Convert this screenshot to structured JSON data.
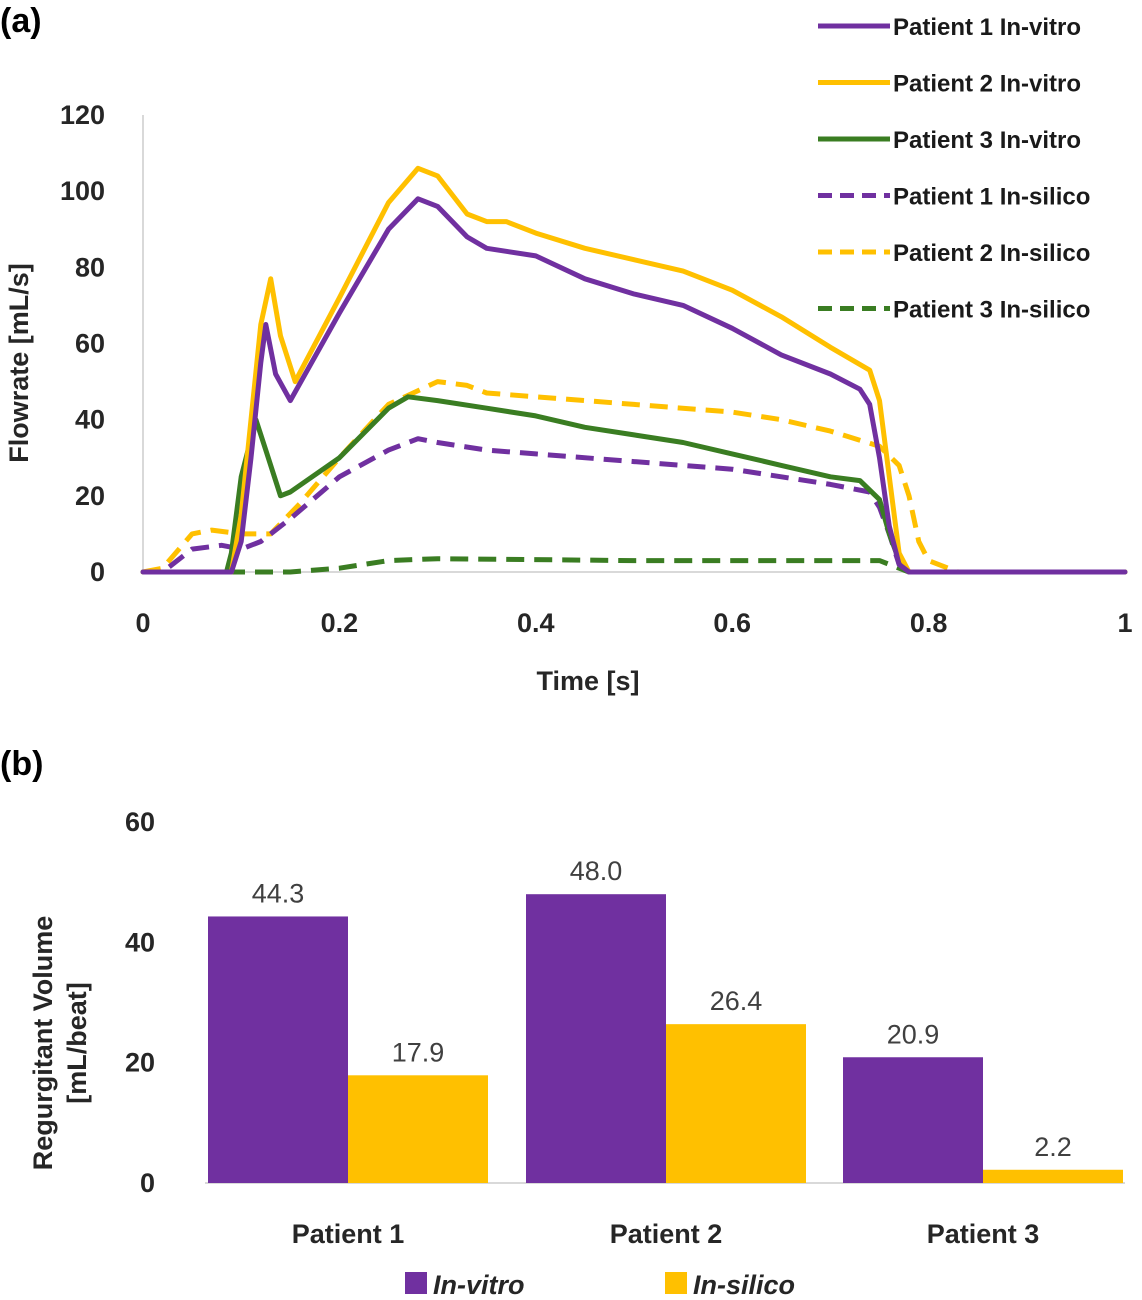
{
  "chart_data": [
    {
      "panel": "(a)",
      "type": "line",
      "title": "",
      "xlabel": "Time [s]",
      "ylabel": "Flowrate [mL/s]",
      "xlim": [
        0,
        1
      ],
      "ylim": [
        0,
        120
      ],
      "xticks": [
        "0",
        "0.2",
        "0.4",
        "0.6",
        "0.8",
        "1"
      ],
      "xtick_values": [
        0,
        0.2,
        0.4,
        0.6,
        0.8,
        1
      ],
      "yticks": [
        "0",
        "20",
        "40",
        "60",
        "80",
        "100",
        "120"
      ],
      "ytick_values": [
        0,
        20,
        40,
        60,
        80,
        100,
        120
      ],
      "grid": false,
      "legend_position": "top-right",
      "series": [
        {
          "name": "Patient 1 In-vitro",
          "color": "#7030a0",
          "dash": false,
          "x": [
            0,
            0.09,
            0.1,
            0.11,
            0.12,
            0.125,
            0.135,
            0.15,
            0.2,
            0.25,
            0.28,
            0.3,
            0.33,
            0.35,
            0.4,
            0.45,
            0.5,
            0.55,
            0.6,
            0.65,
            0.7,
            0.73,
            0.74,
            0.75,
            0.76,
            0.77,
            0.78,
            1
          ],
          "y": [
            0,
            0,
            8,
            30,
            55,
            65,
            52,
            45,
            68,
            90,
            98,
            96,
            88,
            85,
            83,
            77,
            73,
            70,
            64,
            57,
            52,
            48,
            44,
            30,
            12,
            2,
            0,
            0
          ]
        },
        {
          "name": "Patient 2 In-vitro",
          "color": "#ffc000",
          "dash": false,
          "x": [
            0,
            0.09,
            0.1,
            0.11,
            0.12,
            0.13,
            0.14,
            0.155,
            0.2,
            0.25,
            0.28,
            0.3,
            0.33,
            0.35,
            0.37,
            0.4,
            0.45,
            0.5,
            0.55,
            0.6,
            0.65,
            0.7,
            0.74,
            0.75,
            0.76,
            0.77,
            0.78,
            1
          ],
          "y": [
            0,
            0,
            15,
            40,
            65,
            77,
            62,
            50,
            72,
            97,
            106,
            104,
            94,
            92,
            92,
            89,
            85,
            82,
            79,
            74,
            67,
            59,
            53,
            45,
            25,
            5,
            0,
            0
          ]
        },
        {
          "name": "Patient 3 In-vitro",
          "color": "#3a7d22",
          "dash": false,
          "x": [
            0,
            0.085,
            0.09,
            0.1,
            0.115,
            0.125,
            0.14,
            0.15,
            0.2,
            0.25,
            0.27,
            0.3,
            0.35,
            0.4,
            0.45,
            0.5,
            0.55,
            0.6,
            0.65,
            0.7,
            0.73,
            0.75,
            0.76,
            0.77,
            0.78,
            1
          ],
          "y": [
            0,
            0,
            5,
            25,
            40,
            32,
            20,
            21,
            30,
            43,
            46,
            45,
            43,
            41,
            38,
            36,
            34,
            31,
            28,
            25,
            24,
            19,
            10,
            3,
            0,
            0
          ]
        },
        {
          "name": "Patient 1 In-silico",
          "color": "#7030a0",
          "dash": true,
          "x": [
            0,
            0.02,
            0.05,
            0.08,
            0.1,
            0.12,
            0.15,
            0.2,
            0.25,
            0.28,
            0.3,
            0.35,
            0.4,
            0.5,
            0.6,
            0.65,
            0.7,
            0.74,
            0.75,
            0.76,
            0.77,
            0.78,
            1
          ],
          "y": [
            0,
            0,
            6,
            7,
            6,
            8,
            14,
            25,
            32,
            35,
            34,
            32,
            31,
            29,
            27,
            25,
            23,
            21,
            17,
            10,
            2,
            0,
            0
          ]
        },
        {
          "name": "Patient 2 In-silico",
          "color": "#ffc000",
          "dash": true,
          "x": [
            0,
            0.02,
            0.05,
            0.07,
            0.1,
            0.13,
            0.16,
            0.2,
            0.25,
            0.3,
            0.33,
            0.35,
            0.4,
            0.5,
            0.6,
            0.65,
            0.7,
            0.75,
            0.77,
            0.78,
            0.79,
            0.8,
            0.83,
            1
          ],
          "y": [
            0,
            1,
            10,
            11,
            10,
            10,
            18,
            30,
            44,
            50,
            49,
            47,
            46,
            44,
            42,
            40,
            37,
            33,
            28,
            20,
            8,
            3,
            0,
            0
          ]
        },
        {
          "name": "Patient 3 In-silico",
          "color": "#3a7d22",
          "dash": true,
          "x": [
            0,
            0.15,
            0.2,
            0.25,
            0.3,
            0.5,
            0.75,
            0.77,
            0.78,
            1
          ],
          "y": [
            0,
            0,
            1,
            3,
            3.5,
            3,
            3,
            1,
            0,
            0
          ]
        }
      ]
    },
    {
      "panel": "(b)",
      "type": "bar",
      "title": "",
      "xlabel": "",
      "ylabel": "Regurgitant Volume [mL/beat]",
      "ylabel_lines": [
        "Regurgitant Volume",
        "[mL/beat]"
      ],
      "ylim": [
        0,
        60
      ],
      "yticks": [
        "0",
        "20",
        "40",
        "60"
      ],
      "ytick_values": [
        0,
        20,
        40,
        60
      ],
      "categories": [
        "Patient 1",
        "Patient 2",
        "Patient 3"
      ],
      "legend_position": "bottom",
      "series": [
        {
          "name": "In-vitro",
          "color": "#7030a0",
          "values": [
            44.3,
            48.0,
            20.9
          ],
          "labels": [
            "44.3",
            "48.0",
            "20.9"
          ]
        },
        {
          "name": "In-silico",
          "color": "#ffc000",
          "values": [
            17.9,
            26.4,
            2.2
          ],
          "labels": [
            "17.9",
            "26.4",
            "2.2"
          ]
        }
      ]
    }
  ]
}
